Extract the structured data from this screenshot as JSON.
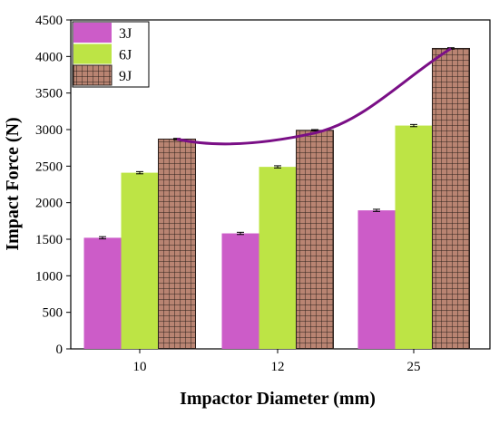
{
  "chart_data": {
    "type": "bar",
    "title": "",
    "xlabel": "Impactor Diameter (mm)",
    "ylabel": "Impact Force (N)",
    "categories": [
      "10",
      "12",
      "25"
    ],
    "series": [
      {
        "name": "3J",
        "values": [
          1520,
          1580,
          1895
        ],
        "errors": [
          15,
          15,
          15
        ],
        "color": "#cc5cc8",
        "pattern": "solid"
      },
      {
        "name": "6J",
        "values": [
          2410,
          2490,
          3055
        ],
        "errors": [
          15,
          15,
          15
        ],
        "color": "#bde445",
        "pattern": "solid"
      },
      {
        "name": "9J",
        "values": [
          2870,
          2990,
          4110
        ],
        "errors": [
          10,
          10,
          10
        ],
        "color": "#b98472",
        "pattern": "grid"
      }
    ],
    "trend_curve": {
      "series": "9J",
      "color": "#7a0f86",
      "shape": "smooth curve through the 9J bar tops"
    },
    "ylim": [
      0,
      4500
    ],
    "yticks": [
      0,
      500,
      1000,
      1500,
      2000,
      2500,
      3000,
      3500,
      4000,
      4500
    ],
    "grid": false,
    "legend_position": "top-left"
  }
}
